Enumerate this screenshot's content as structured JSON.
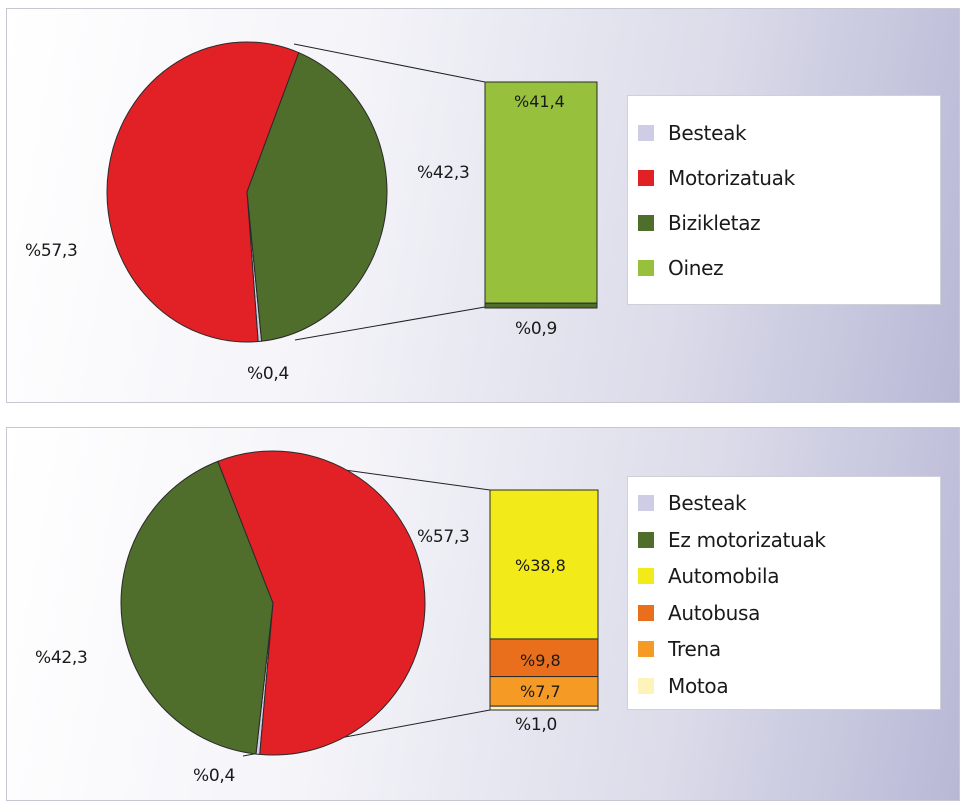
{
  "colors": {
    "besteak": "#cdcde6",
    "motorizatuak": "#e22126",
    "bizikletaz": "#4f6e2c",
    "oinez": "#97c13c",
    "automobila": "#f2ea19",
    "autobusa": "#ea6f1c",
    "trena": "#f59b25",
    "motoa": "#fdf3bb"
  },
  "chart_data": [
    {
      "type": "pie",
      "slices": [
        {
          "name": "Besteak",
          "value": 0.4,
          "label": "%0,4"
        },
        {
          "name": "Motorizatuak",
          "value": 57.3,
          "label": "%57,3"
        },
        {
          "name": "Bizikletaz",
          "value": 42.3,
          "label": "%42,3"
        }
      ],
      "breakdown": {
        "of": "Bizikletaz",
        "segments": [
          {
            "name": "Oinez",
            "value": 41.4,
            "label": "%41,4"
          },
          {
            "name": "Bizikletaz",
            "value": 0.9,
            "label": "%0,9"
          }
        ]
      },
      "legend": [
        "Besteak",
        "Motorizatuak",
        "Bizikletaz",
        "Oinez"
      ],
      "legend_position": "right"
    },
    {
      "type": "pie",
      "slices": [
        {
          "name": "Besteak",
          "value": 0.4,
          "label": "%0,4"
        },
        {
          "name": "Ez motorizatuak",
          "value": 42.3,
          "label": "%42,3"
        },
        {
          "name": "Motorizatuak",
          "value": 57.3,
          "label": "%57,3"
        }
      ],
      "breakdown": {
        "of": "Motorizatuak",
        "segments": [
          {
            "name": "Automobila",
            "value": 38.8,
            "label": "%38,8"
          },
          {
            "name": "Autobusa",
            "value": 9.8,
            "label": "%9,8"
          },
          {
            "name": "Trena",
            "value": 7.7,
            "label": "%7,7"
          },
          {
            "name": "Motoa",
            "value": 1.0,
            "label": "%1,0"
          }
        ]
      },
      "legend": [
        "Besteak",
        "Ez motorizatuak",
        "Automobila",
        "Autobusa",
        "Trena",
        "Motoa"
      ],
      "legend_position": "right"
    }
  ]
}
